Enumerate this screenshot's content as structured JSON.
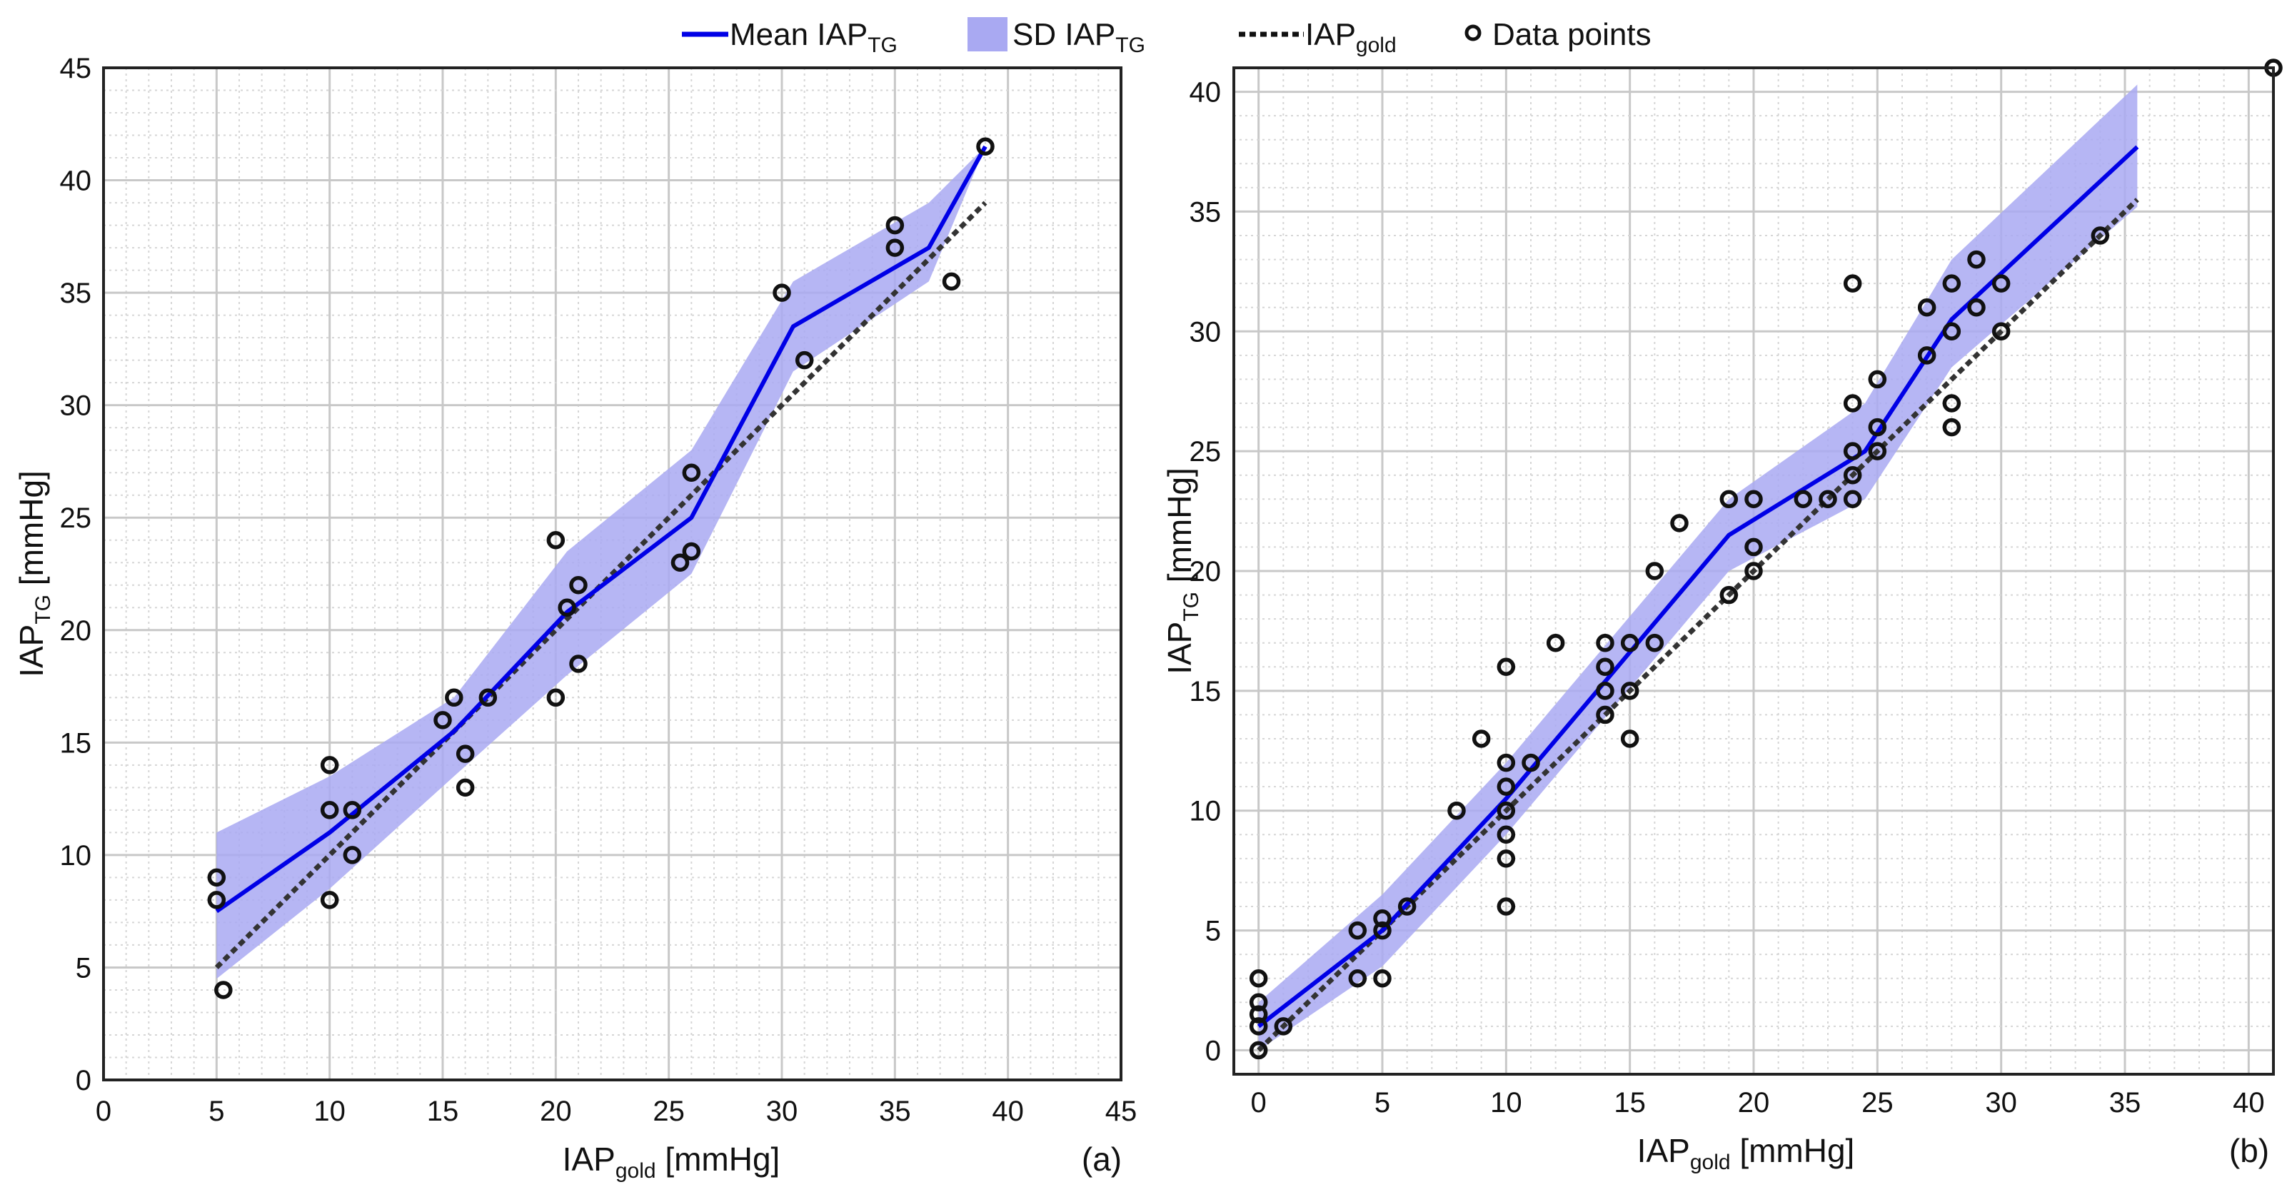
{
  "legend": {
    "mean": {
      "label": "Mean IAP",
      "sub": "TG"
    },
    "sd": {
      "label": "SD IAP",
      "sub": "TG"
    },
    "gold": {
      "label": "IAP",
      "sub": "gold"
    },
    "points": {
      "label": "Data points"
    }
  },
  "colors": {
    "mean_line": "#0000e6",
    "sd_band": "#a9a9f2",
    "gold_line": "#333333",
    "points": "#111111",
    "major_grid": "#c8c8c8",
    "minor_grid": "#d6d6d6"
  },
  "chart_data": [
    {
      "type": "line",
      "panel_label": "(a)",
      "xlabel": {
        "main": "IAP",
        "sub": "gold",
        "unit": " [mmHg]"
      },
      "ylabel": {
        "main": "IAP",
        "sub": "TG",
        "unit": " [mmHg]"
      },
      "xlim": [
        0,
        45
      ],
      "ylim": [
        0,
        45
      ],
      "xticks": [
        0,
        5,
        10,
        15,
        20,
        25,
        30,
        35,
        40,
        45
      ],
      "yticks": [
        0,
        5,
        10,
        15,
        20,
        25,
        30,
        35,
        40,
        45
      ],
      "grid": "on",
      "series": [
        {
          "name": "Mean IAP_TG",
          "style": "solid",
          "x": [
            5,
            10,
            15.5,
            20.5,
            26,
            30.5,
            36.5,
            39
          ],
          "y": [
            7.5,
            11,
            15.5,
            20.8,
            25,
            33.5,
            37,
            41.5
          ]
        },
        {
          "name": "IAP_gold",
          "style": "dotted",
          "x": [
            5,
            39
          ],
          "y": [
            5,
            39
          ]
        }
      ],
      "sd_band": {
        "x": [
          5,
          10,
          15.5,
          20.5,
          26,
          30.5,
          36.5,
          39
        ],
        "upper": [
          11,
          13.5,
          17,
          23.5,
          28,
          35.5,
          39,
          41.5
        ],
        "lower": [
          4.5,
          8.5,
          13.5,
          18,
          22.5,
          31.5,
          35.5,
          41.5
        ]
      },
      "points": [
        [
          5,
          9
        ],
        [
          5,
          8
        ],
        [
          5.3,
          4
        ],
        [
          10,
          14
        ],
        [
          10,
          12
        ],
        [
          10,
          8
        ],
        [
          11,
          12
        ],
        [
          11,
          10
        ],
        [
          15,
          16
        ],
        [
          15.5,
          17
        ],
        [
          16,
          14.5
        ],
        [
          16,
          13
        ],
        [
          17,
          17
        ],
        [
          20,
          24
        ],
        [
          20,
          17
        ],
        [
          20.5,
          21
        ],
        [
          21,
          22
        ],
        [
          21,
          18.5
        ],
        [
          25.5,
          23
        ],
        [
          26,
          27
        ],
        [
          26,
          23.5
        ],
        [
          30,
          35
        ],
        [
          31,
          32
        ],
        [
          35,
          38
        ],
        [
          35,
          37
        ],
        [
          37.5,
          35.5
        ],
        [
          39,
          41.5
        ]
      ]
    },
    {
      "type": "line",
      "panel_label": "(b)",
      "xlabel": {
        "main": "IAP",
        "sub": "gold",
        "unit": " [mmHg]"
      },
      "ylabel": {
        "main": "IAP",
        "sub": "TG",
        "unit": " [mmHg]"
      },
      "xlim": [
        -1,
        41
      ],
      "ylim": [
        -1,
        41
      ],
      "xticks": [
        0,
        5,
        10,
        15,
        20,
        25,
        30,
        35,
        40
      ],
      "yticks": [
        0,
        5,
        10,
        15,
        20,
        25,
        30,
        35,
        40
      ],
      "grid": "on",
      "series": [
        {
          "name": "Mean IAP_TG",
          "style": "solid",
          "x": [
            0,
            5,
            10,
            14.5,
            19,
            24.5,
            28,
            35.5
          ],
          "y": [
            1,
            5,
            10.5,
            16,
            21.5,
            25,
            30.5,
            37.7
          ]
        },
        {
          "name": "IAP_gold",
          "style": "dotted",
          "x": [
            0,
            35.5
          ],
          "y": [
            0,
            35.5
          ]
        }
      ],
      "sd_band": {
        "x": [
          0,
          5,
          10,
          14.5,
          19,
          24.5,
          28,
          35.5
        ],
        "upper": [
          2,
          6.5,
          12,
          17.5,
          23,
          27,
          33,
          40.3
        ],
        "lower": [
          0,
          3.5,
          9,
          14.5,
          20,
          23,
          28.5,
          35.2
        ]
      },
      "points": [
        [
          0,
          3
        ],
        [
          0,
          2
        ],
        [
          0,
          1.5
        ],
        [
          0,
          1
        ],
        [
          0,
          0
        ],
        [
          1,
          1
        ],
        [
          4,
          5
        ],
        [
          4,
          3
        ],
        [
          5,
          5.5
        ],
        [
          5,
          5
        ],
        [
          5,
          3
        ],
        [
          6,
          6
        ],
        [
          8,
          10
        ],
        [
          9,
          13
        ],
        [
          10,
          16
        ],
        [
          10,
          12
        ],
        [
          10,
          11
        ],
        [
          10,
          10
        ],
        [
          10,
          9
        ],
        [
          10,
          8
        ],
        [
          10,
          6
        ],
        [
          11,
          12
        ],
        [
          12,
          17
        ],
        [
          14,
          17
        ],
        [
          14,
          16
        ],
        [
          14,
          15
        ],
        [
          14,
          14
        ],
        [
          15,
          17
        ],
        [
          15,
          15
        ],
        [
          15,
          13
        ],
        [
          16,
          20
        ],
        [
          16,
          17
        ],
        [
          17,
          22
        ],
        [
          19,
          23
        ],
        [
          19,
          19
        ],
        [
          20,
          23
        ],
        [
          20,
          21
        ],
        [
          20,
          20
        ],
        [
          22,
          23
        ],
        [
          23,
          23
        ],
        [
          24,
          32
        ],
        [
          24,
          27
        ],
        [
          24,
          25
        ],
        [
          24,
          24
        ],
        [
          24,
          23
        ],
        [
          25,
          28
        ],
        [
          25,
          26
        ],
        [
          25,
          25
        ],
        [
          27,
          31
        ],
        [
          27,
          29
        ],
        [
          28,
          32
        ],
        [
          28,
          30
        ],
        [
          28,
          27
        ],
        [
          28,
          26
        ],
        [
          29,
          33
        ],
        [
          29,
          31
        ],
        [
          30,
          32
        ],
        [
          30,
          30
        ],
        [
          34,
          34
        ],
        [
          41,
          41
        ]
      ]
    }
  ]
}
